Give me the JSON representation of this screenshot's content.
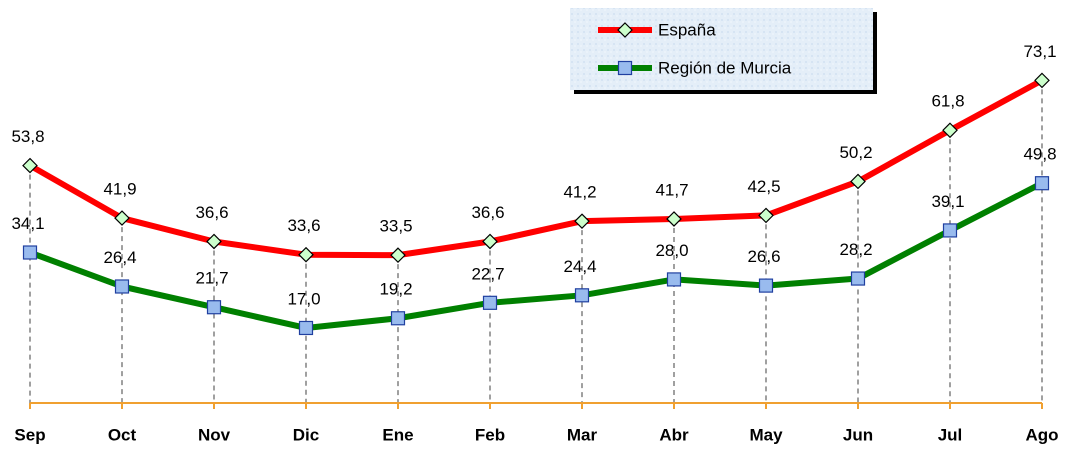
{
  "chart_data": {
    "type": "line",
    "categories": [
      "Sep",
      "Oct",
      "Nov",
      "Dic",
      "Ene",
      "Feb",
      "Mar",
      "Abr",
      "May",
      "Jun",
      "Jul",
      "Ago"
    ],
    "series": [
      {
        "name": "España",
        "color": "#ff0000",
        "marker": "diamond",
        "marker_color": "#ccffcc",
        "values": [
          53.8,
          41.9,
          36.6,
          33.6,
          33.5,
          36.6,
          41.2,
          41.7,
          42.5,
          50.2,
          61.8,
          73.1
        ],
        "value_labels": [
          "53,8",
          "41,9",
          "36,6",
          "33,6",
          "33,5",
          "36,6",
          "41,2",
          "41,7",
          "42,5",
          "50,2",
          "61,8",
          "73,1"
        ]
      },
      {
        "name": "Región de Murcia",
        "color": "#008000",
        "marker": "square",
        "marker_color": "#99bbee",
        "values": [
          34.1,
          26.4,
          21.7,
          17.0,
          19.2,
          22.7,
          24.4,
          28.0,
          26.6,
          28.2,
          39.1,
          49.8
        ],
        "value_labels": [
          "34,1",
          "26,4",
          "21,7",
          "17,0",
          "19,2",
          "22,7",
          "24,4",
          "28,0",
          "26,6",
          "28,2",
          "39,1",
          "49,8"
        ]
      }
    ],
    "ylim": [
      0,
      75
    ],
    "legend": "upper right"
  }
}
